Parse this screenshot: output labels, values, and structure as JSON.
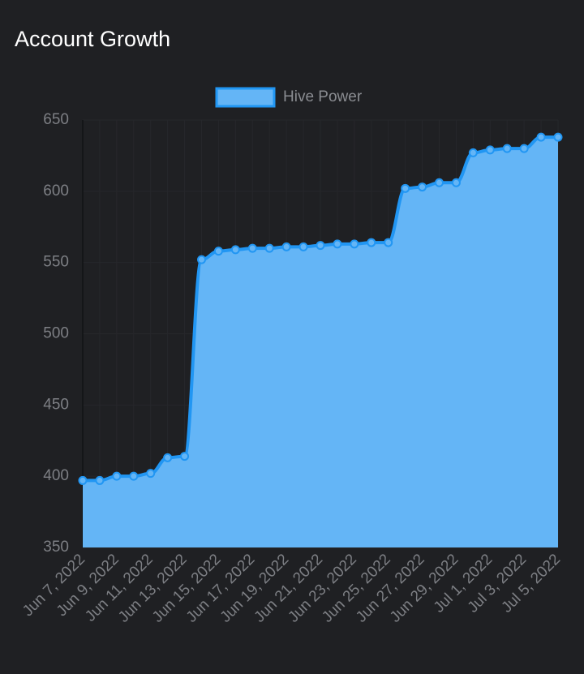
{
  "chart_data": {
    "type": "area",
    "title": "Account Growth",
    "categories": [
      "Jun 7, 2022",
      null,
      "Jun 9, 2022",
      null,
      "Jun 11, 2022",
      null,
      "Jun 13, 2022",
      null,
      "Jun 15, 2022",
      null,
      "Jun 17, 2022",
      null,
      "Jun 19, 2022",
      null,
      "Jun 21, 2022",
      null,
      "Jun 23, 2022",
      null,
      "Jun 25, 2022",
      null,
      "Jun 27, 2022",
      null,
      "Jun 29, 2022",
      null,
      "Jul 1, 2022",
      null,
      "Jul 3, 2022",
      null,
      "Jul 5, 2022"
    ],
    "series": [
      {
        "name": "Hive Power",
        "color": "#2196f3",
        "fill": "#64b5f6",
        "values": [
          397,
          397,
          400,
          400,
          402,
          413,
          414,
          552,
          558,
          559,
          560,
          560,
          561,
          561,
          562,
          563,
          563,
          564,
          564,
          602,
          603,
          606,
          606,
          627,
          629,
          630,
          630,
          638,
          638
        ]
      }
    ],
    "ylim": [
      350,
      650
    ],
    "yticks": [
      350,
      400,
      450,
      500,
      550,
      600,
      650
    ],
    "grid": true
  }
}
